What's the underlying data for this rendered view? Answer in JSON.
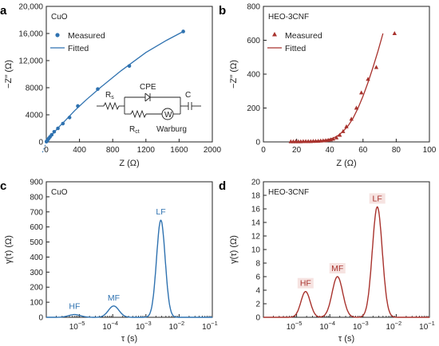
{
  "colors": {
    "cuo": "#2f72b0",
    "heo": "#a8322d",
    "axis": "#222222"
  },
  "panels": [
    {
      "id": "a",
      "letter": "a",
      "title": "CuO",
      "type": "scatter",
      "color": "#2f72b0",
      "xlabel": "Z (Ω)",
      "ylabel": "−Z′′ (Ω)",
      "xlim": [
        0,
        2000
      ],
      "ylim": [
        0,
        20000
      ],
      "xticks": [
        0,
        400,
        800,
        1200,
        1600,
        2000
      ],
      "yticks": [
        0,
        4000,
        8000,
        12000,
        16000,
        20000
      ],
      "xticklabels": [
        "0",
        "400",
        "800",
        "1200",
        "1600",
        "2000"
      ],
      "yticklabels": [
        "0",
        "4000",
        "8000",
        "12,000",
        "16,000",
        "20,000"
      ],
      "legend": [
        "Measured",
        "Fitted"
      ],
      "marker": "circle",
      "measured": {
        "x": [
          2,
          5,
          10,
          18,
          30,
          45,
          65,
          95,
          140,
          200,
          280,
          380,
          620,
          1000,
          1650
        ],
        "y": [
          40,
          90,
          180,
          320,
          520,
          750,
          1050,
          1500,
          2000,
          2700,
          3600,
          5300,
          7800,
          11200,
          16300
        ]
      },
      "fitted": {
        "x": [
          0,
          10,
          30,
          60,
          100,
          160,
          240,
          340,
          480,
          660,
          900,
          1200,
          1450,
          1650
        ],
        "y": [
          0,
          150,
          480,
          950,
          1500,
          2300,
          3300,
          4600,
          6200,
          8100,
          10500,
          13200,
          15000,
          16300
        ]
      },
      "circuit": {
        "rs": "R",
        "rs_sub": "s",
        "cpe": "CPE",
        "rct": "R",
        "rct_sub": "ct",
        "w": "W",
        "warburg": "Warburg",
        "c": "C"
      }
    },
    {
      "id": "b",
      "letter": "b",
      "title": "HEO-3CNF",
      "type": "scatter",
      "color": "#a8322d",
      "xlabel": "Z (Ω)",
      "ylabel": "−Z′′ (Ω)",
      "xlim": [
        0,
        100
      ],
      "ylim": [
        0,
        800
      ],
      "xticks": [
        0,
        20,
        40,
        60,
        80,
        100
      ],
      "yticks": [
        0,
        200,
        400,
        600,
        800
      ],
      "xticklabels": [
        "0",
        "20",
        "40",
        "60",
        "80",
        "100"
      ],
      "yticklabels": [
        "0",
        "200",
        "400",
        "600",
        "800"
      ],
      "legend": [
        "Measured",
        "Fitted"
      ],
      "marker": "triangle",
      "measured": {
        "x": [
          16.5,
          18,
          19.5,
          21,
          22.5,
          24,
          25.5,
          27,
          28.5,
          30,
          31.5,
          33,
          34.5,
          36,
          37.5,
          39,
          40.5,
          42,
          44,
          46,
          48,
          50,
          53,
          56,
          59,
          63,
          68,
          79
        ],
        "y": [
          2,
          2,
          2,
          2,
          2,
          3,
          3,
          3,
          3,
          4,
          4,
          5,
          6,
          7,
          8,
          10,
          13,
          17,
          25,
          40,
          62,
          90,
          135,
          200,
          290,
          370,
          440,
          640
        ]
      },
      "fitted": {
        "x": [
          16,
          22,
          28,
          32,
          36,
          39,
          42,
          45,
          48,
          51,
          54,
          57,
          60,
          63,
          66,
          69,
          72
        ],
        "y": [
          2,
          3,
          4,
          6,
          9,
          14,
          22,
          38,
          62,
          95,
          140,
          200,
          270,
          350,
          440,
          535,
          640
        ]
      }
    },
    {
      "id": "c",
      "letter": "c",
      "title": "CuO",
      "type": "line",
      "color": "#2f72b0",
      "xlabel": "τ (s)",
      "ylabel": "γ(τ) (Ω)",
      "xscale": "log",
      "xlim_exp": [
        -6,
        -1
      ],
      "ylim": [
        0,
        900
      ],
      "yticks": [
        0,
        100,
        200,
        300,
        400,
        500,
        600,
        700,
        800,
        900
      ],
      "yticklabels": [
        "0",
        "100",
        "200",
        "300",
        "400",
        "500",
        "600",
        "700",
        "800",
        "900"
      ],
      "xtick_exps": [
        -5,
        -4,
        -3,
        -2,
        -1
      ],
      "xtick_base": "10",
      "xtick_sups": [
        "−5",
        "−4",
        "−3",
        "−2",
        "−1"
      ],
      "peaks": [
        {
          "label": "HF",
          "log10_tau": -5.15,
          "height": 18,
          "width": 0.18
        },
        {
          "label": "MF",
          "log10_tau": -3.97,
          "height": 75,
          "width": 0.16
        },
        {
          "label": "LF",
          "log10_tau": -2.55,
          "height": 645,
          "width": 0.13
        }
      ]
    },
    {
      "id": "d",
      "letter": "d",
      "title": "HEO-3CNF",
      "type": "line",
      "color": "#a8322d",
      "xlabel": "τ (s)",
      "ylabel": "γ(τ) (Ω)",
      "xscale": "log",
      "xlim_exp": [
        -6,
        -1
      ],
      "ylim": [
        0,
        20
      ],
      "yticks": [
        0,
        2,
        4,
        6,
        8,
        10,
        12,
        14,
        16,
        18,
        20
      ],
      "yticklabels": [
        "0",
        "2",
        "4",
        "6",
        "8",
        "10",
        "12",
        "14",
        "16",
        "18",
        "20"
      ],
      "xtick_exps": [
        -5,
        -4,
        -3,
        -2,
        -1
      ],
      "xtick_base": "10",
      "xtick_sups": [
        "−5",
        "−4",
        "−3",
        "−2",
        "−1"
      ],
      "peaks": [
        {
          "label": "HF",
          "log10_tau": -4.73,
          "height": 3.8,
          "width": 0.14
        },
        {
          "label": "MF",
          "log10_tau": -3.77,
          "height": 6.0,
          "width": 0.16
        },
        {
          "label": "LF",
          "log10_tau": -2.57,
          "height": 16.3,
          "width": 0.15
        }
      ]
    }
  ]
}
